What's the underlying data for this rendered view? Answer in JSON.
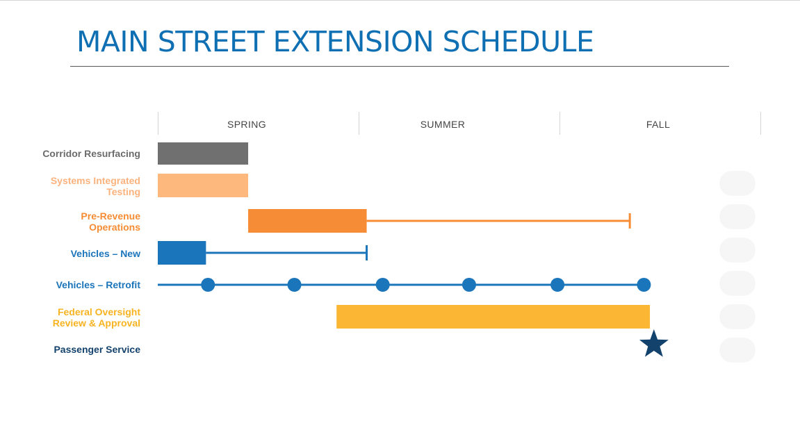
{
  "header": {
    "title": "MAIN STREET EXTENSION SCHEDULE",
    "title_color": "#0f6fb3"
  },
  "chart_data": {
    "type": "gantt",
    "time_axis": {
      "labels": [
        "SPRING",
        "SUMMER",
        "FALL"
      ],
      "unit": "season",
      "range": [
        0,
        3
      ]
    },
    "rows": [
      {
        "label": "Corridor Resurfacing",
        "label_color": "#6b6b6b",
        "color": "#707070",
        "bar": [
          0,
          0.45
        ]
      },
      {
        "label": "Systems Integrated Testing",
        "label_lines": [
          "Systems Integrated",
          "Testing"
        ],
        "label_color": "#fbb27d",
        "color": "#fdb87e",
        "bar": [
          0,
          0.45
        ]
      },
      {
        "label": "Pre-Revenue Operations",
        "label_lines": [
          "Pre-Revenue",
          "Operations"
        ],
        "label_color": "#f58c34",
        "color": "#f68d36",
        "bar": [
          0.45,
          1.04
        ],
        "whisker_end": 2.35
      },
      {
        "label": "Vehicles – New",
        "label_color": "#1b75bb",
        "color": "#1b75bb",
        "bar": [
          0,
          0.24
        ],
        "whisker_end": 1.04
      },
      {
        "label": "Vehicles – Retrofit",
        "label_color": "#1b75bb",
        "color": "#1b75bb",
        "line": [
          0,
          2.44
        ],
        "milestones": [
          0.25,
          0.68,
          1.12,
          1.55,
          1.99,
          2.42
        ]
      },
      {
        "label": "Federal Oversight Review & Approval",
        "label_lines": [
          "Federal Oversight",
          "Review & Approval"
        ],
        "label_color": "#f7b320",
        "color": "#fbb733",
        "bar": [
          0.89,
          2.45
        ]
      },
      {
        "label": "Passenger Service",
        "label_color": "#13426d",
        "color": "#13426d",
        "star_at": 2.47
      }
    ]
  }
}
